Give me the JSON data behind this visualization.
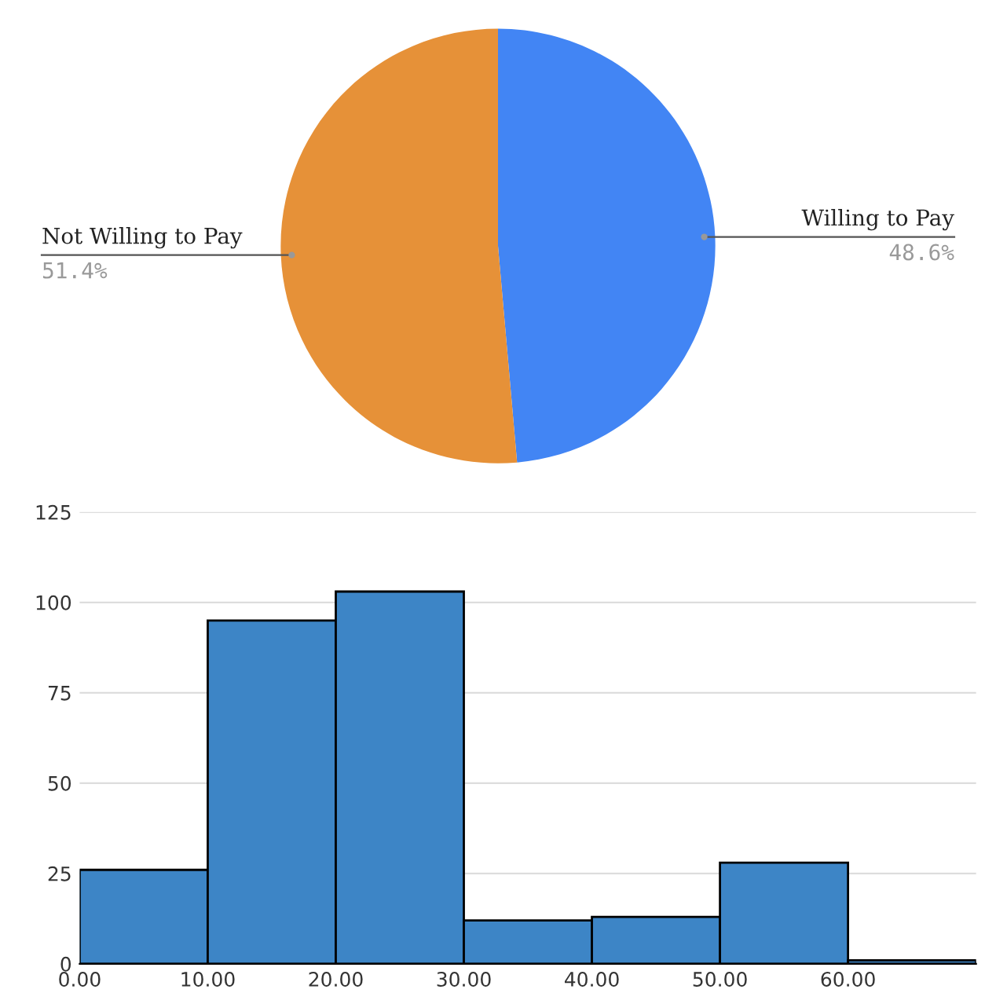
{
  "chart_data": [
    {
      "type": "pie",
      "categories": [
        "Willing to Pay",
        "Not Willing to Pay"
      ],
      "values": [
        48.6,
        51.4
      ],
      "colors": [
        "#4285f4",
        "#e69138"
      ],
      "value_labels": [
        "48.6%",
        "51.4%"
      ],
      "legend": false
    },
    {
      "type": "histogram",
      "bins": [
        0,
        10,
        20,
        30,
        40,
        50,
        60,
        70
      ],
      "values": [
        26,
        95,
        103,
        12,
        13,
        28,
        1
      ],
      "color": "#3d85c6",
      "xlim": [
        0,
        70
      ],
      "xticks": [
        {
          "value": 0,
          "label": "0.00"
        },
        {
          "value": 10,
          "label": "10.00"
        },
        {
          "value": 20,
          "label": "20.00"
        },
        {
          "value": 30,
          "label": "30.00"
        },
        {
          "value": 40,
          "label": "40.00"
        },
        {
          "value": 50,
          "label": "50.00"
        },
        {
          "value": 60,
          "label": "60.00"
        }
      ],
      "ylim": [
        0,
        125
      ],
      "yticks": [
        0,
        25,
        50,
        75,
        100,
        125
      ],
      "grid": "y",
      "legend": false
    }
  ]
}
